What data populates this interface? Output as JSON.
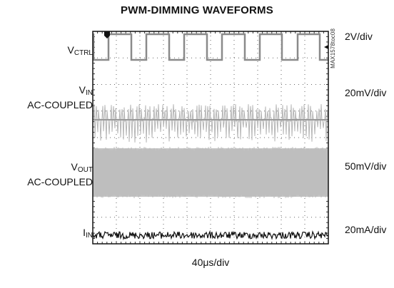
{
  "chart_data": {
    "type": "line",
    "title": "PWM-DIMMING WAVEFORMS",
    "xlabel": "40μs/div",
    "part_number": "MAX1578toc08",
    "grid": true,
    "divisions": {
      "x": 10,
      "y": 8
    },
    "channels": [
      {
        "label_main": "V",
        "label_sub": "CTRL",
        "label_note": "",
        "scale": "2V/div",
        "trace": "square",
        "color": "#8a8a8a"
      },
      {
        "label_main": "V",
        "label_sub": "IN",
        "label_note": "AC-COUPLED",
        "scale": "20mV/div",
        "trace": "spiky-noise",
        "color": "#b5b5b5"
      },
      {
        "label_main": "V",
        "label_sub": "OUT",
        "label_note": "AC-COUPLED",
        "scale": "50mV/div",
        "trace": "dense-band",
        "color": "#c4c4c4"
      },
      {
        "label_main": "I",
        "label_sub": "IN",
        "label_note": "",
        "scale": "20mA/div",
        "trace": "noise",
        "color": "#111111"
      }
    ],
    "pwm": {
      "period_div": 1.6,
      "high_fraction": 0.6
    }
  }
}
